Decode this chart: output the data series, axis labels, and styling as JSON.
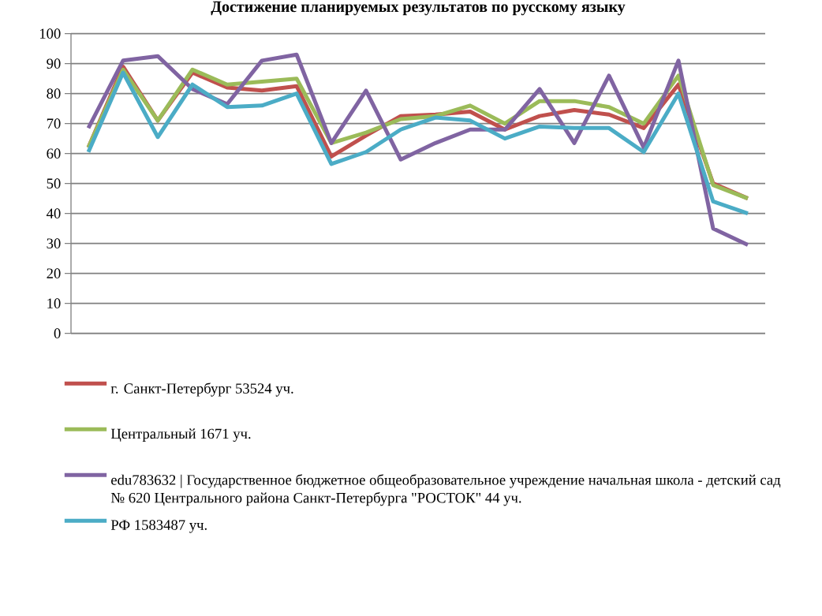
{
  "chart_data": {
    "type": "line",
    "title": "Достижение планируемых результатов по русскому языку",
    "categories": [
      null,
      null,
      null,
      null,
      null,
      null,
      null,
      null,
      null,
      null,
      null,
      null,
      null,
      null,
      null,
      null,
      null,
      null,
      null,
      null
    ],
    "series": [
      {
        "name": "г. Санкт-Петербург 53524 уч.",
        "color": "#c0504d",
        "values": [
          62,
          89,
          71,
          87,
          82,
          81,
          82.5,
          59,
          66,
          72.5,
          73,
          74,
          68,
          72.5,
          74.5,
          73,
          68.5,
          83,
          50,
          45
        ]
      },
      {
        "name": "Центральный 1671 уч.",
        "color": "#9bbb59",
        "values": [
          62,
          88,
          71,
          88,
          83,
          84,
          85,
          63.5,
          67,
          71.5,
          72.5,
          76,
          70,
          77.5,
          77.5,
          75.5,
          70,
          86,
          49.5,
          45
        ]
      },
      {
        "name": "edu783632 | Государственное бюджетное общеобразовательное учреждение начальная школа - детский сад № 620 Центрального района Санкт-Петербурга \"РОСТОК\" 44 уч.",
        "color": "#8064a2",
        "values": [
          68.5,
          91,
          92.5,
          81.5,
          76.5,
          91,
          93,
          63.5,
          81,
          58,
          63.5,
          68,
          68,
          81.5,
          63.5,
          86,
          62,
          91,
          35,
          29.5
        ]
      },
      {
        "name": "РФ 1583487 уч.",
        "color": "#4bacc6",
        "values": [
          60.5,
          87,
          65.5,
          83,
          75.5,
          76,
          80,
          56.5,
          60.5,
          68,
          72,
          71,
          65,
          69,
          68.5,
          68.5,
          60.5,
          80,
          44,
          40
        ]
      }
    ],
    "ylim": [
      0,
      100
    ],
    "yticks": [
      0,
      10,
      20,
      30,
      40,
      50,
      60,
      70,
      80,
      90,
      100
    ],
    "grid": "y",
    "legend": "bottom",
    "tick_labels": "y",
    "line_style": "solid"
  }
}
